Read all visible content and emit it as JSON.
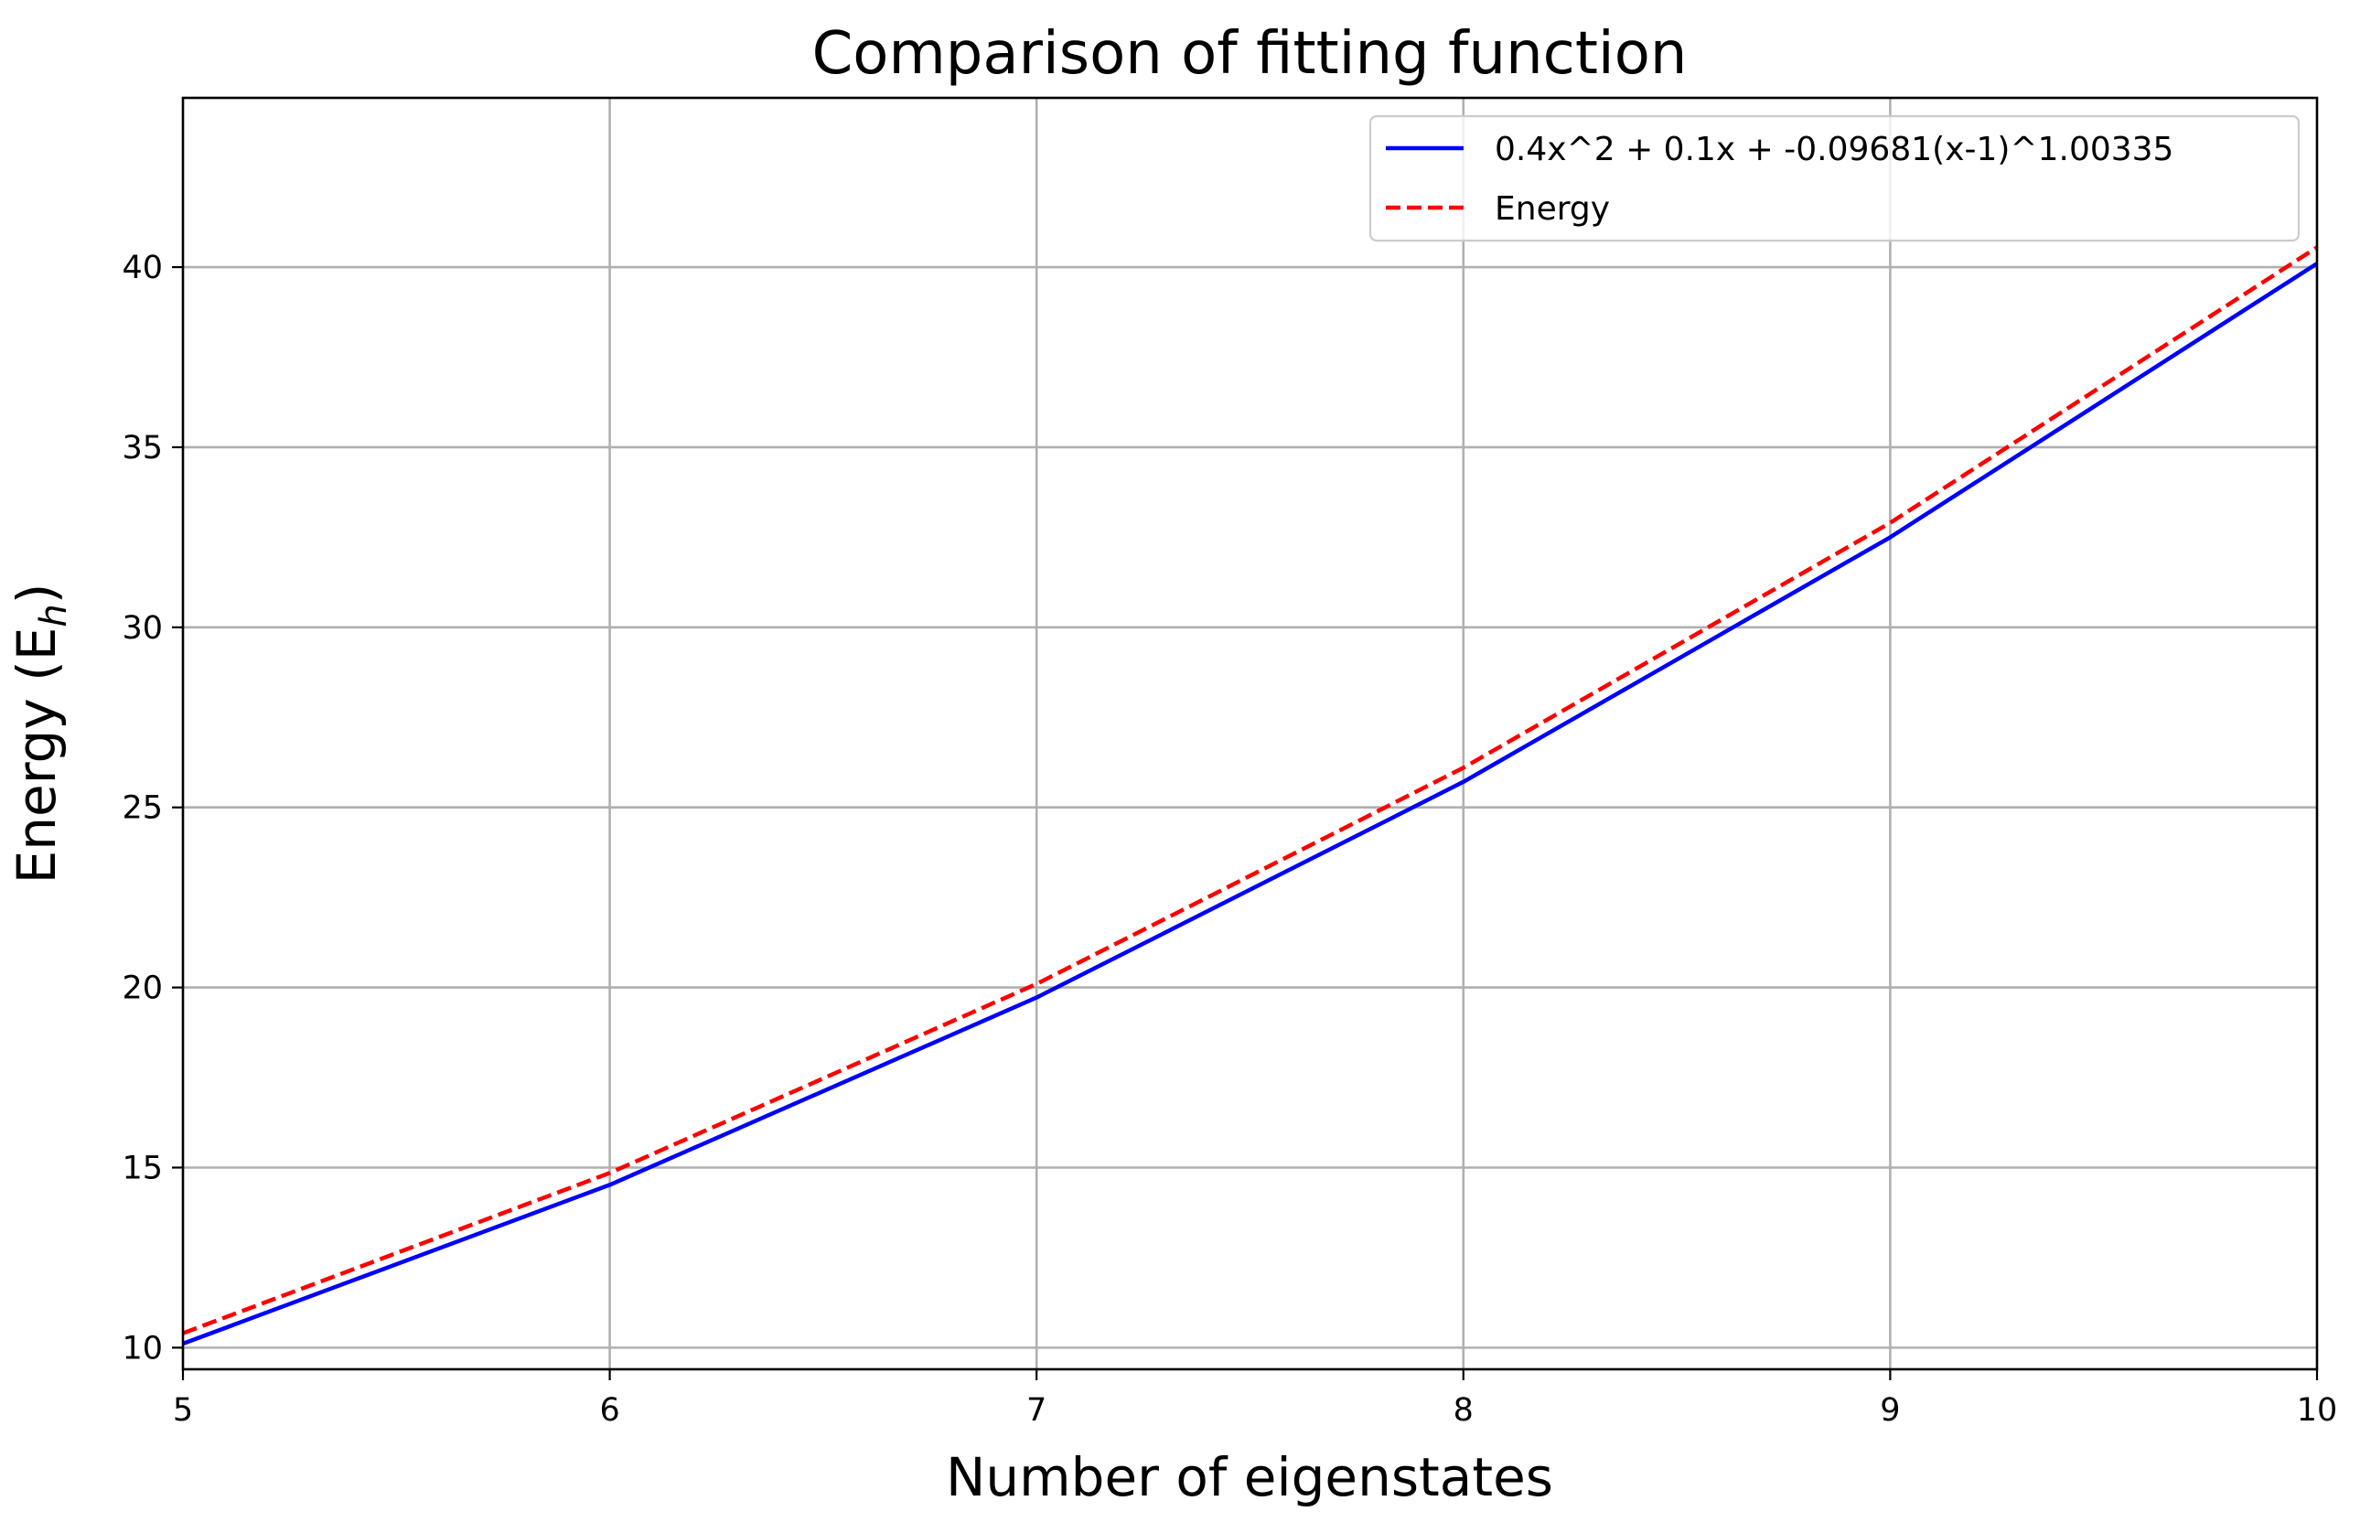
{
  "chart_data": {
    "type": "line",
    "title": "Comparison of fitting function",
    "xlabel": "Number of eigenstates",
    "ylabel": "Energy (E",
    "ylabel_subscript": "h",
    "ylabel_close": ")",
    "xlim": [
      5,
      10
    ],
    "ylim": [
      9.4,
      44.7
    ],
    "xticks": [
      5,
      6,
      7,
      8,
      9,
      10
    ],
    "yticks": [
      10,
      15,
      20,
      25,
      30,
      35,
      40
    ],
    "grid": true,
    "legend_position": "top-right",
    "x": [
      5,
      6,
      7,
      8,
      9,
      10
    ],
    "series": [
      {
        "name": "0.4x^2 + 0.1x + -0.09681(x-1)^1.00335",
        "values": [
          10.11,
          14.52,
          19.72,
          25.71,
          32.5,
          40.1
        ],
        "color": "#0000ff",
        "style": "solid"
      },
      {
        "name": "Energy",
        "values": [
          10.4,
          14.85,
          20.1,
          26.1,
          32.9,
          40.55
        ],
        "color": "#ff0000",
        "style": "dashed"
      }
    ]
  }
}
